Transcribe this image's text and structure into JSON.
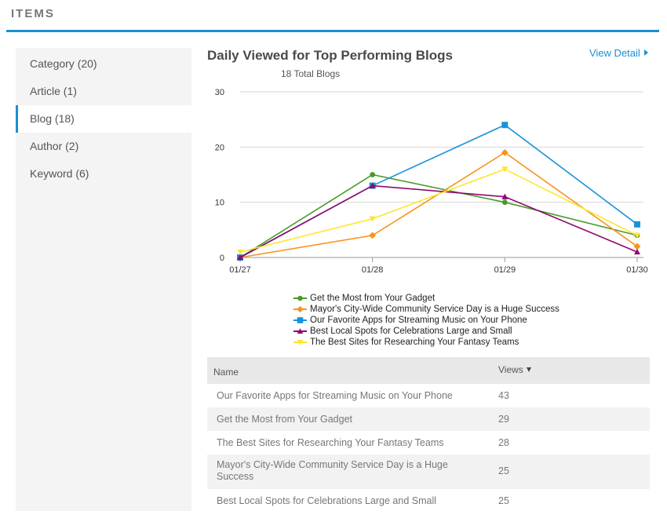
{
  "header": {
    "title": "ITEMS"
  },
  "sidebar": {
    "items": [
      {
        "label": "Category (20)"
      },
      {
        "label": "Article (1)"
      },
      {
        "label": "Blog (18)"
      },
      {
        "label": "Author (2)"
      },
      {
        "label": "Keyword (6)"
      }
    ]
  },
  "main": {
    "view_detail": "View Detail",
    "table": {
      "columns": [
        "Name",
        "Views"
      ],
      "rows": [
        {
          "name": "Our Favorite Apps for Streaming Music on Your Phone",
          "views": "43"
        },
        {
          "name": "Get the Most from Your Gadget",
          "views": "29"
        },
        {
          "name": "The Best Sites for Researching Your Fantasy Teams",
          "views": "28"
        },
        {
          "name": "Mayor's City-Wide Community Service Day is a Huge Success",
          "views": "25"
        },
        {
          "name": "Best Local Spots for Celebrations Large and Small",
          "views": "25"
        }
      ]
    }
  },
  "chart_data": {
    "type": "line",
    "title": "Daily Viewed for Top Performing Blogs",
    "subtitle": "18 Total Blogs",
    "categories": [
      "01/27",
      "01/28",
      "01/29",
      "01/30"
    ],
    "yticks": [
      "0",
      "10",
      "20",
      "30"
    ],
    "ylim": [
      0,
      30
    ],
    "grid": true,
    "legend_position": "bottom",
    "series": [
      {
        "name": "Get the Most from Your Gadget",
        "color": "#4a9a2a",
        "marker": "circle",
        "values": [
          0,
          15,
          10,
          4
        ]
      },
      {
        "name": "Mayor's City-Wide Community Service Day is a Huge Success",
        "color": "#f7931e",
        "marker": "diamond",
        "values": [
          0,
          4,
          19,
          2
        ]
      },
      {
        "name": "Our Favorite Apps for Streaming Music on Your Phone",
        "color": "#1b92d8",
        "marker": "square",
        "values": [
          0,
          13,
          24,
          6
        ]
      },
      {
        "name": "Best Local Spots for Celebrations Large and Small",
        "color": "#8c0a6e",
        "marker": "triangle",
        "values": [
          0,
          13,
          11,
          1
        ]
      },
      {
        "name": "The Best Sites for Researching Your Fantasy Teams",
        "color": "#ffe52e",
        "marker": "triangle-down",
        "values": [
          1,
          7,
          16,
          4
        ]
      }
    ]
  }
}
